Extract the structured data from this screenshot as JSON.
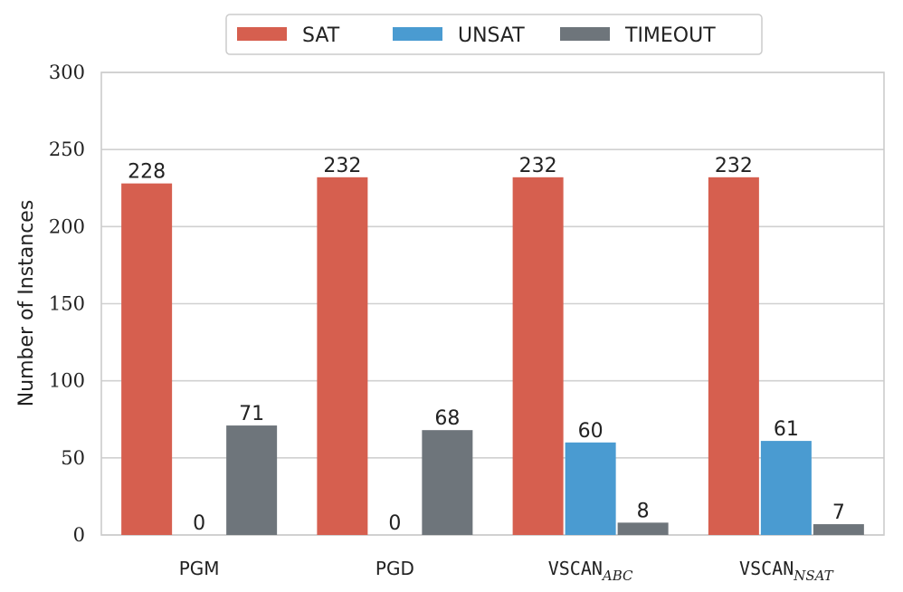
{
  "chart_data": {
    "type": "bar",
    "ylabel": "Number of Instances",
    "xlabel": "",
    "ylim": [
      0,
      300
    ],
    "yticks": [
      "0",
      "50",
      "100",
      "150",
      "200",
      "250",
      "300"
    ],
    "grid": "horizontal",
    "legend_placement": "top-center",
    "categories": [
      {
        "label": "PGM",
        "sub": ""
      },
      {
        "label": "PGD",
        "sub": ""
      },
      {
        "label": "VSCAN",
        "sub": "ABC"
      },
      {
        "label": "VSCAN",
        "sub": "NSAT"
      }
    ],
    "series": [
      {
        "name": "SAT",
        "color": "#d65f4f",
        "values": [
          228,
          232,
          232,
          232
        ],
        "value_labels": [
          "228",
          "232",
          "232",
          "232"
        ]
      },
      {
        "name": "UNSAT",
        "color": "#4a9bd1",
        "values": [
          0,
          0,
          60,
          61
        ],
        "value_labels": [
          "0",
          "0",
          "60",
          "61"
        ]
      },
      {
        "name": "TIMEOUT",
        "color": "#6e757b",
        "values": [
          71,
          68,
          8,
          7
        ],
        "value_labels": [
          "71",
          "68",
          "8",
          "7"
        ]
      }
    ]
  }
}
